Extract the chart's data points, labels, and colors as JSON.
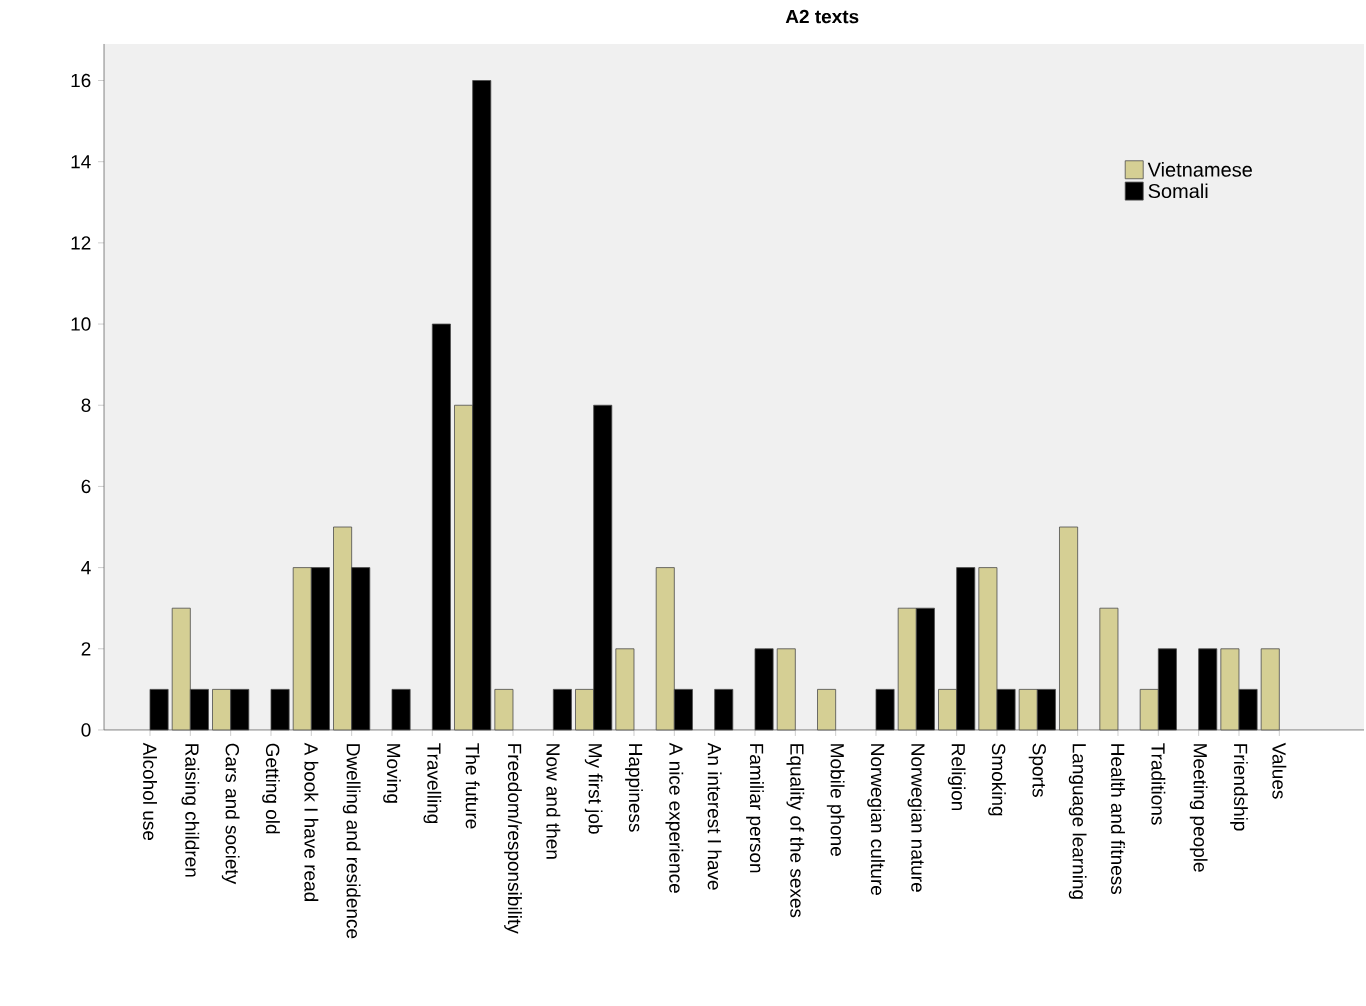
{
  "chart_data": {
    "type": "bar",
    "title": "A2 texts",
    "categories": [
      "Alcohol use",
      "Raising children",
      "Cars and society",
      "Getting old",
      "A book I have read",
      "Dwelling and residence",
      "Moving",
      "Travelling",
      "The future",
      "Freedom/responsibility",
      "Now and then",
      "My first job",
      "Happiness",
      "A nice experience",
      "An interest I have",
      "Familiar person",
      "Equality of the sexes",
      "Mobile phone",
      "Norwegian culture",
      "Norwegian nature",
      "Religion",
      "Smoking",
      "Sports",
      "Language learning",
      "Health and fitness",
      "Traditions",
      "Meeting people",
      "Friendship",
      "Values"
    ],
    "series": [
      {
        "name": "Vietnamese",
        "color": "#d5cf94",
        "values": [
          0,
          3,
          1,
          0,
          4,
          5,
          0,
          0,
          8,
          1,
          0,
          1,
          2,
          4,
          0,
          0,
          2,
          1,
          0,
          3,
          1,
          4,
          1,
          5,
          3,
          1,
          0,
          2,
          2
        ]
      },
      {
        "name": "Somali",
        "color": "#000000",
        "values": [
          1,
          1,
          1,
          1,
          4,
          4,
          1,
          10,
          16,
          0,
          1,
          8,
          0,
          1,
          1,
          2,
          0,
          0,
          1,
          3,
          4,
          1,
          1,
          0,
          0,
          2,
          2,
          1,
          0
        ]
      }
    ],
    "ylim": [
      0,
      16.9
    ],
    "yticks": [
      0,
      2,
      4,
      6,
      8,
      10,
      12,
      14,
      16
    ],
    "grid": false,
    "legend": "top right"
  }
}
